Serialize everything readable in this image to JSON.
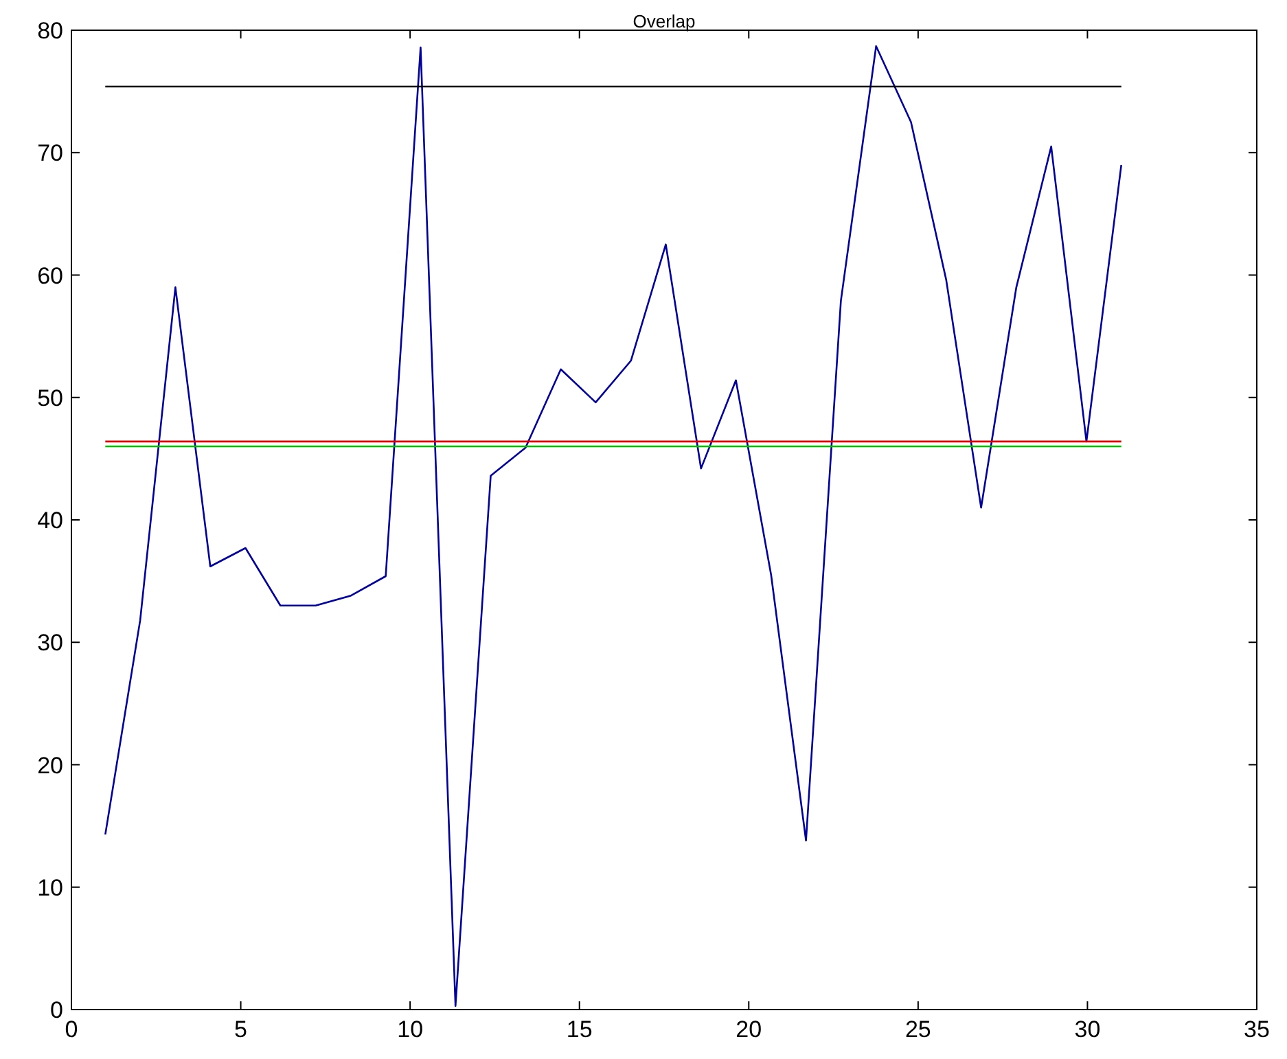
{
  "chart_data": {
    "type": "line",
    "title": "Overlap",
    "xlim": [
      0,
      35
    ],
    "ylim": [
      0,
      80
    ],
    "xticks": [
      0,
      5,
      10,
      15,
      20,
      25,
      30,
      35
    ],
    "yticks": [
      0,
      10,
      20,
      30,
      40,
      50,
      60,
      70,
      80
    ],
    "grid": false,
    "marker": "none",
    "line_style": "solid",
    "series": [
      {
        "color": "#0000a0",
        "x": [
          1,
          2.03,
          3.07,
          4.1,
          5.14,
          6.17,
          7.21,
          8.24,
          9.28,
          10.31,
          11.34,
          12.38,
          13.41,
          14.45,
          15.48,
          16.52,
          17.55,
          18.59,
          19.62,
          20.66,
          21.69,
          22.72,
          23.76,
          24.79,
          25.83,
          26.86,
          27.9,
          28.93,
          29.97,
          31
        ],
        "values": [
          14.3,
          31.8,
          59,
          36.2,
          37.7,
          33,
          33,
          33.8,
          35.4,
          78.6,
          0.3,
          43.6,
          45.9,
          52.3,
          49.6,
          53,
          62.5,
          44.2,
          51.4,
          35.5,
          13.8,
          57.9,
          78.7,
          72.5,
          59.6,
          41,
          59,
          70.5,
          46.4,
          69
        ]
      },
      {
        "color": "#000000",
        "x": [
          1,
          31
        ],
        "values": [
          75.4,
          75.4
        ]
      },
      {
        "color": "#e00000",
        "x": [
          1,
          31
        ],
        "values": [
          46.4,
          46.4
        ]
      },
      {
        "color": "#00c000",
        "x": [
          1,
          31
        ],
        "values": [
          46,
          46
        ]
      }
    ]
  }
}
